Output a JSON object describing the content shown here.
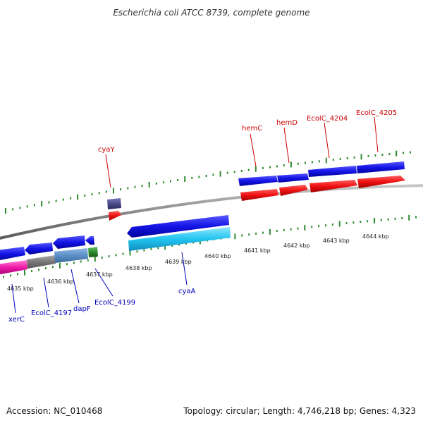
{
  "header": {
    "title": "Escherichia coli ATCC 8739, complete genome"
  },
  "footer": {
    "accession": "Accession: NC_010468",
    "topology": "Topology: circular; Length: 4,746,218 bp; Genes: 4,323"
  },
  "axis": {
    "tick_labels": [
      "4635 kbp",
      "4636 kbp",
      "4637 kbp",
      "4638 kbp",
      "4639 kbp",
      "4640 kbp",
      "4641 kbp",
      "4642 kbp",
      "4643 kbp",
      "4644 kbp"
    ]
  },
  "gene_labels": {
    "top": [
      "cyaY",
      "hemC",
      "hemD",
      "EcolC_4204",
      "EcolC_4205"
    ],
    "bottom": [
      "xerC",
      "EcolC_4197",
      "dapF",
      "EcolC_4199",
      "cyaA"
    ]
  },
  "colors": {
    "backbone": "#8a8a8a",
    "tick_green": "#2e8b2e",
    "forward_cds": "#1010dd",
    "reverse_cds": "#0000cc",
    "forward_cog": "#ee1111",
    "label_red": "#cc0000",
    "label_blue": "#0000bb",
    "cog_magenta": "#ee1aa8",
    "cog_gray": "#777777",
    "cog_steel": "#5b8fc7",
    "cog_green": "#2d8a2d",
    "cog_cyan": "#22c4f0",
    "cog_slate": "#4a4a8a"
  }
}
